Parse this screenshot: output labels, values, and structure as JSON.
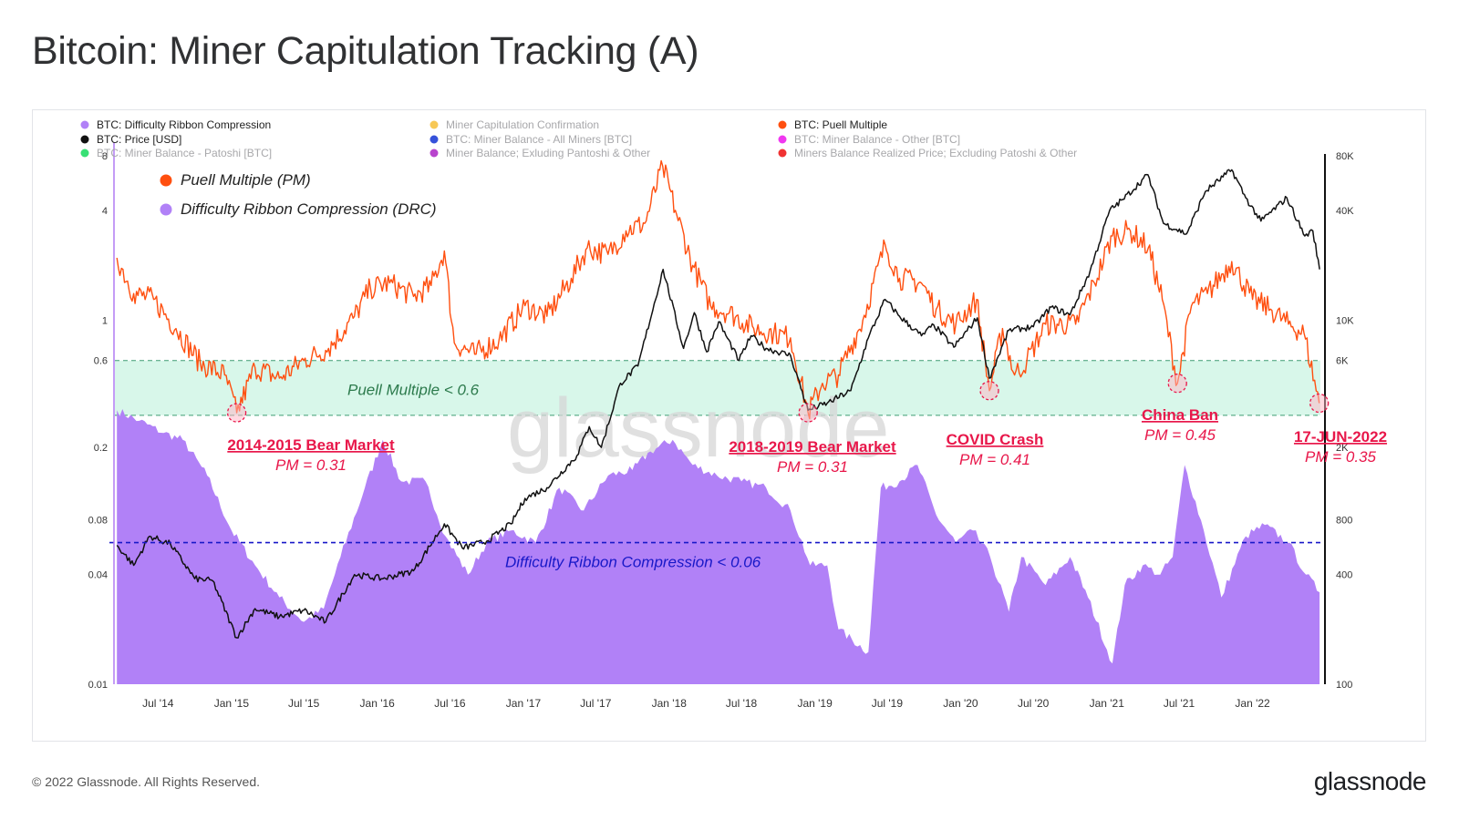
{
  "page": {
    "title": "Bitcoin: Miner Capitulation Tracking (A)",
    "copyright": "© 2022 Glassnode. All Rights Reserved.",
    "brand": "glassnode",
    "watermark": "glassnode"
  },
  "legend_top": [
    {
      "label": "BTC: Difficulty Ribbon Compression",
      "color": "#b181f7",
      "muted": false
    },
    {
      "label": "Miner Capitulation Confirmation",
      "color": "#f6c244",
      "muted": true
    },
    {
      "label": "BTC: Puell Multiple",
      "color": "#ff4f0f",
      "muted": false
    },
    {
      "label": "BTC: Price [USD]",
      "color": "#111111",
      "muted": false
    },
    {
      "label": "BTC: Miner Balance - All Miners [BTC]",
      "color": "#1f3fd6",
      "muted": true
    },
    {
      "label": "BTC: Miner Balance - Other [BTC]",
      "color": "#ee22ee",
      "muted": true
    },
    {
      "label": "BTC: Miner Balance - Patoshi [BTC]",
      "color": "#22dd66",
      "muted": true
    },
    {
      "label": "Miner Balance; Exluding Pantoshi & Other",
      "color": "#b030c8",
      "muted": true
    },
    {
      "label": "Miners Balance Realized Price; Excluding Patoshi & Other",
      "color": "#ee1c1c",
      "muted": true
    }
  ],
  "legend_inner": [
    {
      "label": "Puell Multiple (PM)",
      "color": "#ff4f0f"
    },
    {
      "label": "Difficulty Ribbon Compression (DRC)",
      "color": "#b181f7"
    }
  ],
  "colors": {
    "puell": "#ff4f0f",
    "puell_in_zone": "#e9651b",
    "price": "#111111",
    "drc_fill": "#b181f7",
    "zone_fill": "#d8f7ea",
    "zone_line": "#3f9c73",
    "drc_threshold": "#1818c8",
    "annotation": "#e8174a",
    "axis_text": "#333333"
  },
  "chart_data": {
    "type": "area",
    "title": "",
    "x_ticks": [
      "Jul '14",
      "Jan '15",
      "Jul '15",
      "Jan '16",
      "Jul '16",
      "Jan '17",
      "Jul '17",
      "Jan '18",
      "Jul '18",
      "Jan '19",
      "Jul '19",
      "Jan '20",
      "Jul '20",
      "Jan '21",
      "Jul '21",
      "Jan '22"
    ],
    "x_tick_dates": [
      "2014-07-01",
      "2015-01-01",
      "2015-07-01",
      "2016-01-01",
      "2016-07-01",
      "2017-01-01",
      "2017-07-01",
      "2018-01-01",
      "2018-07-01",
      "2019-01-01",
      "2019-07-01",
      "2020-01-01",
      "2020-07-01",
      "2021-01-01",
      "2021-07-01",
      "2022-01-01"
    ],
    "x_range": [
      "2014-03-15",
      "2022-06-20"
    ],
    "y_left": {
      "scale": "log",
      "ticks": [
        "0.01",
        "0.04",
        "0.08",
        "0.2",
        "0.6",
        "1",
        "4",
        "8"
      ],
      "range": [
        0.01,
        8
      ]
    },
    "y_right": {
      "scale": "log",
      "ticks": [
        "100",
        "400",
        "800",
        "2K",
        "6K",
        "10K",
        "40K",
        "80K"
      ],
      "range": [
        100,
        80000
      ]
    },
    "thresholds": [
      {
        "axis": "left",
        "value": 0.6,
        "label": "Puell Multiple < 0.6"
      },
      {
        "axis": "left",
        "value": 0.3,
        "label": ""
      },
      {
        "axis": "left",
        "value": 0.06,
        "label": "Difficulty Ribbon Compression < 0.06"
      }
    ],
    "series": [
      {
        "name": "BTC: Puell Multiple",
        "axis": "left",
        "points": [
          [
            "2014-03-20",
            2.2
          ],
          [
            "2014-05-01",
            1.4
          ],
          [
            "2014-06-20",
            1.3
          ],
          [
            "2014-08-15",
            0.9
          ],
          [
            "2014-10-15",
            0.58
          ],
          [
            "2014-12-15",
            0.5
          ],
          [
            "2015-01-14",
            0.31
          ],
          [
            "2015-03-01",
            0.55
          ],
          [
            "2015-05-01",
            0.48
          ],
          [
            "2015-07-01",
            0.6
          ],
          [
            "2015-09-01",
            0.7
          ],
          [
            "2015-11-05",
            1.05
          ],
          [
            "2015-12-15",
            1.5
          ],
          [
            "2016-02-01",
            1.6
          ],
          [
            "2016-04-01",
            1.35
          ],
          [
            "2016-05-15",
            1.55
          ],
          [
            "2016-06-17",
            2.4
          ],
          [
            "2016-07-12",
            0.75
          ],
          [
            "2016-09-01",
            0.65
          ],
          [
            "2016-11-01",
            0.78
          ],
          [
            "2017-01-05",
            1.2
          ],
          [
            "2017-03-01",
            1.05
          ],
          [
            "2017-05-01",
            1.7
          ],
          [
            "2017-06-10",
            2.5
          ],
          [
            "2017-08-01",
            2.3
          ],
          [
            "2017-09-15",
            3.1
          ],
          [
            "2017-11-01",
            3.4
          ],
          [
            "2017-12-16",
            7.0
          ],
          [
            "2018-01-20",
            3.8
          ],
          [
            "2018-03-01",
            2.0
          ],
          [
            "2018-04-15",
            1.2
          ],
          [
            "2018-06-01",
            1.1
          ],
          [
            "2018-08-01",
            0.9
          ],
          [
            "2018-09-20",
            0.85
          ],
          [
            "2018-11-01",
            0.8
          ],
          [
            "2018-12-15",
            0.31
          ],
          [
            "2019-01-20",
            0.45
          ],
          [
            "2019-03-01",
            0.5
          ],
          [
            "2019-05-01",
            1.0
          ],
          [
            "2019-06-26",
            2.6
          ],
          [
            "2019-08-01",
            1.7
          ],
          [
            "2019-09-25",
            1.6
          ],
          [
            "2019-11-01",
            1.15
          ],
          [
            "2019-12-20",
            0.95
          ],
          [
            "2020-02-10",
            1.3
          ],
          [
            "2020-03-13",
            0.41
          ],
          [
            "2020-04-15",
            0.9
          ],
          [
            "2020-05-15",
            0.5
          ],
          [
            "2020-06-15",
            0.6
          ],
          [
            "2020-08-01",
            0.95
          ],
          [
            "2020-10-15",
            0.95
          ],
          [
            "2020-12-01",
            1.6
          ],
          [
            "2021-01-15",
            2.9
          ],
          [
            "2021-03-01",
            3.1
          ],
          [
            "2021-04-15",
            2.5
          ],
          [
            "2021-05-20",
            1.3
          ],
          [
            "2021-06-27",
            0.45
          ],
          [
            "2021-08-01",
            1.2
          ],
          [
            "2021-09-10",
            1.4
          ],
          [
            "2021-11-10",
            2.1
          ],
          [
            "2022-01-01",
            1.3
          ],
          [
            "2022-02-15",
            1.15
          ],
          [
            "2022-04-01",
            0.95
          ],
          [
            "2022-05-10",
            0.85
          ],
          [
            "2022-06-17",
            0.35
          ]
        ]
      },
      {
        "name": "BTC: Price [USD]",
        "axis": "right",
        "points": [
          [
            "2014-03-20",
            580
          ],
          [
            "2014-05-01",
            450
          ],
          [
            "2014-06-10",
            650
          ],
          [
            "2014-08-01",
            590
          ],
          [
            "2014-10-01",
            380
          ],
          [
            "2014-11-15",
            370
          ],
          [
            "2015-01-14",
            180
          ],
          [
            "2015-03-01",
            260
          ],
          [
            "2015-05-01",
            235
          ],
          [
            "2015-07-01",
            255
          ],
          [
            "2015-08-25",
            220
          ],
          [
            "2015-11-05",
            400
          ],
          [
            "2016-01-15",
            380
          ],
          [
            "2016-04-01",
            420
          ],
          [
            "2016-06-17",
            760
          ],
          [
            "2016-08-01",
            560
          ],
          [
            "2016-10-01",
            610
          ],
          [
            "2016-12-01",
            760
          ],
          [
            "2017-01-05",
            1050
          ],
          [
            "2017-03-01",
            1200
          ],
          [
            "2017-05-15",
            1800
          ],
          [
            "2017-06-15",
            2600
          ],
          [
            "2017-07-15",
            2000
          ],
          [
            "2017-09-01",
            4500
          ],
          [
            "2017-10-15",
            5600
          ],
          [
            "2017-12-17",
            19000
          ],
          [
            "2018-02-06",
            7000
          ],
          [
            "2018-03-05",
            11000
          ],
          [
            "2018-04-05",
            6700
          ],
          [
            "2018-05-05",
            9800
          ],
          [
            "2018-06-25",
            6000
          ],
          [
            "2018-07-25",
            8200
          ],
          [
            "2018-09-01",
            7000
          ],
          [
            "2018-11-01",
            6400
          ],
          [
            "2018-12-15",
            3200
          ],
          [
            "2019-02-01",
            3500
          ],
          [
            "2019-04-01",
            4100
          ],
          [
            "2019-05-15",
            8000
          ],
          [
            "2019-06-26",
            13000
          ],
          [
            "2019-08-01",
            10500
          ],
          [
            "2019-09-25",
            8200
          ],
          [
            "2019-10-26",
            9400
          ],
          [
            "2019-12-15",
            7100
          ],
          [
            "2020-02-12",
            10300
          ],
          [
            "2020-03-13",
            4800
          ],
          [
            "2020-05-01",
            8800
          ],
          [
            "2020-07-01",
            9200
          ],
          [
            "2020-08-15",
            11800
          ],
          [
            "2020-10-01",
            10700
          ],
          [
            "2020-11-20",
            18500
          ],
          [
            "2021-01-08",
            40000
          ],
          [
            "2021-02-10",
            46000
          ],
          [
            "2021-04-14",
            63000
          ],
          [
            "2021-05-23",
            34000
          ],
          [
            "2021-07-20",
            29800
          ],
          [
            "2021-09-05",
            51000
          ],
          [
            "2021-11-10",
            67000
          ],
          [
            "2021-12-15",
            47000
          ],
          [
            "2022-01-22",
            35000
          ],
          [
            "2022-03-28",
            47000
          ],
          [
            "2022-05-12",
            29000
          ],
          [
            "2022-06-01",
            31000
          ],
          [
            "2022-06-18",
            19000
          ]
        ]
      },
      {
        "name": "BTC: Difficulty Ribbon Compression",
        "axis": "left",
        "points": [
          [
            "2014-03-20",
            0.32
          ],
          [
            "2014-05-15",
            0.28
          ],
          [
            "2014-07-15",
            0.24
          ],
          [
            "2014-09-01",
            0.22
          ],
          [
            "2014-11-01",
            0.14
          ],
          [
            "2015-01-01",
            0.07
          ],
          [
            "2015-03-01",
            0.045
          ],
          [
            "2015-05-01",
            0.03
          ],
          [
            "2015-07-01",
            0.022
          ],
          [
            "2015-08-20",
            0.026
          ],
          [
            "2015-10-01",
            0.05
          ],
          [
            "2015-12-01",
            0.12
          ],
          [
            "2016-01-15",
            0.22
          ],
          [
            "2016-03-01",
            0.13
          ],
          [
            "2016-05-01",
            0.13
          ],
          [
            "2016-06-20",
            0.065
          ],
          [
            "2016-08-15",
            0.04
          ],
          [
            "2016-10-01",
            0.06
          ],
          [
            "2016-12-01",
            0.07
          ],
          [
            "2017-02-01",
            0.06
          ],
          [
            "2017-04-01",
            0.12
          ],
          [
            "2017-06-01",
            0.09
          ],
          [
            "2017-08-01",
            0.14
          ],
          [
            "2017-10-01",
            0.15
          ],
          [
            "2017-11-15",
            0.19
          ],
          [
            "2018-01-10",
            0.22
          ],
          [
            "2018-03-01",
            0.16
          ],
          [
            "2018-05-01",
            0.14
          ],
          [
            "2018-07-01",
            0.13
          ],
          [
            "2018-09-01",
            0.12
          ],
          [
            "2018-11-01",
            0.09
          ],
          [
            "2018-12-20",
            0.045
          ],
          [
            "2019-02-01",
            0.045
          ],
          [
            "2019-03-01",
            0.02
          ],
          [
            "2019-05-15",
            0.015
          ],
          [
            "2019-06-15",
            0.12
          ],
          [
            "2019-08-01",
            0.13
          ],
          [
            "2019-09-15",
            0.16
          ],
          [
            "2019-11-01",
            0.085
          ],
          [
            "2019-12-20",
            0.06
          ],
          [
            "2020-02-01",
            0.07
          ],
          [
            "2020-03-15",
            0.05
          ],
          [
            "2020-05-01",
            0.025
          ],
          [
            "2020-06-01",
            0.05
          ],
          [
            "2020-08-01",
            0.035
          ],
          [
            "2020-10-01",
            0.05
          ],
          [
            "2020-11-15",
            0.03
          ],
          [
            "2021-01-15",
            0.013
          ],
          [
            "2021-02-15",
            0.035
          ],
          [
            "2021-04-01",
            0.045
          ],
          [
            "2021-05-15",
            0.04
          ],
          [
            "2021-06-15",
            0.05
          ],
          [
            "2021-07-15",
            0.16
          ],
          [
            "2021-09-01",
            0.07
          ],
          [
            "2021-10-15",
            0.03
          ],
          [
            "2021-12-15",
            0.065
          ],
          [
            "2022-02-01",
            0.075
          ],
          [
            "2022-04-01",
            0.06
          ],
          [
            "2022-05-15",
            0.04
          ],
          [
            "2022-06-18",
            0.032
          ]
        ]
      }
    ],
    "annotations": [
      {
        "date": "2015-01-14",
        "value": 0.31,
        "title": "2014-2015  Bear Market",
        "subtitle": "PM = 0.31",
        "align": "right-of"
      },
      {
        "date": "2018-12-15",
        "value": 0.31,
        "title": "2018-2019 Bear Market",
        "subtitle": "PM = 0.31",
        "align": "below"
      },
      {
        "date": "2020-03-13",
        "value": 0.41,
        "title": "COVID Crash",
        "subtitle": "PM = 0.41",
        "align": "below"
      },
      {
        "date": "2021-06-27",
        "value": 0.45,
        "title": "China Ban",
        "subtitle": "PM = 0.45",
        "align": "below"
      },
      {
        "date": "2022-06-17",
        "value": 0.35,
        "title": "17-JUN-2022",
        "subtitle": "PM = 0.35",
        "align": "below"
      }
    ]
  }
}
